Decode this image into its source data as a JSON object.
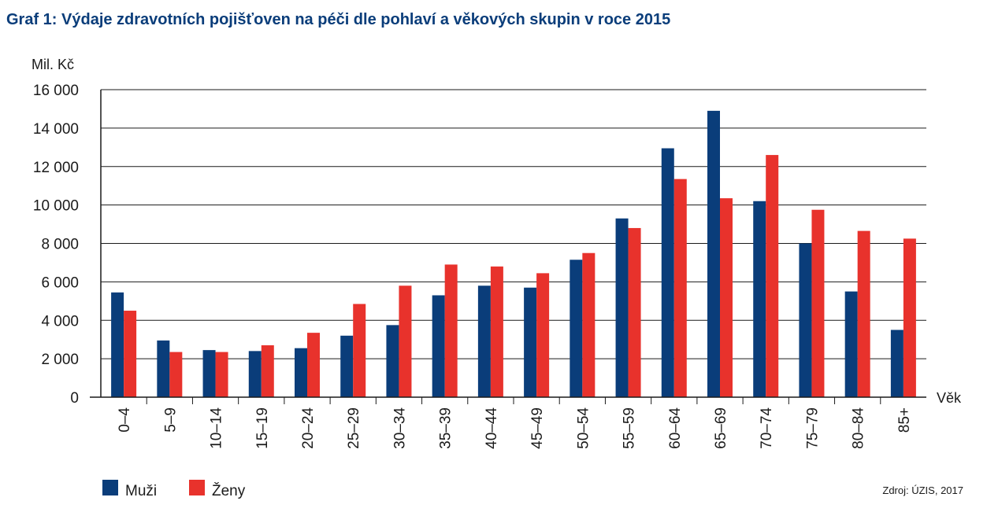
{
  "chart_data": {
    "type": "bar",
    "title": "Graf 1: Výdaje zdravotních pojišťoven na péči dle pohlaví a věkových skupin v roce 2015",
    "ylabel": "Mil. Kč",
    "xlabel": "Věk",
    "ylim": [
      0,
      16000
    ],
    "yticks": [
      0,
      2000,
      4000,
      6000,
      8000,
      10000,
      12000,
      14000,
      16000
    ],
    "ytick_labels": [
      "0",
      "2 000",
      "4 000",
      "6 000",
      "8 000",
      "10 000",
      "12 000",
      "14 000",
      "16 000"
    ],
    "categories": [
      "0–4",
      "5–9",
      "10–14",
      "15–19",
      "20–24",
      "25–29",
      "30–34",
      "35–39",
      "40–44",
      "45–49",
      "50–54",
      "55–59",
      "60–64",
      "65–69",
      "70–74",
      "75–79",
      "80–84",
      "85+"
    ],
    "series": [
      {
        "name": "Muži",
        "color": "#0a3d7a",
        "values": [
          5450,
          2950,
          2450,
          2400,
          2550,
          3200,
          3750,
          5300,
          5800,
          5700,
          7150,
          9300,
          12950,
          14900,
          10200,
          8000,
          5500,
          3500
        ]
      },
      {
        "name": "Ženy",
        "color": "#e8322c",
        "values": [
          4500,
          2350,
          2350,
          2700,
          3350,
          4850,
          5800,
          6900,
          6800,
          6450,
          7500,
          8800,
          11350,
          10350,
          12600,
          9750,
          8650,
          8250
        ]
      }
    ],
    "grid": true,
    "legend_position": "bottom-left",
    "source": "Zdroj: ÚZIS, 2017"
  }
}
